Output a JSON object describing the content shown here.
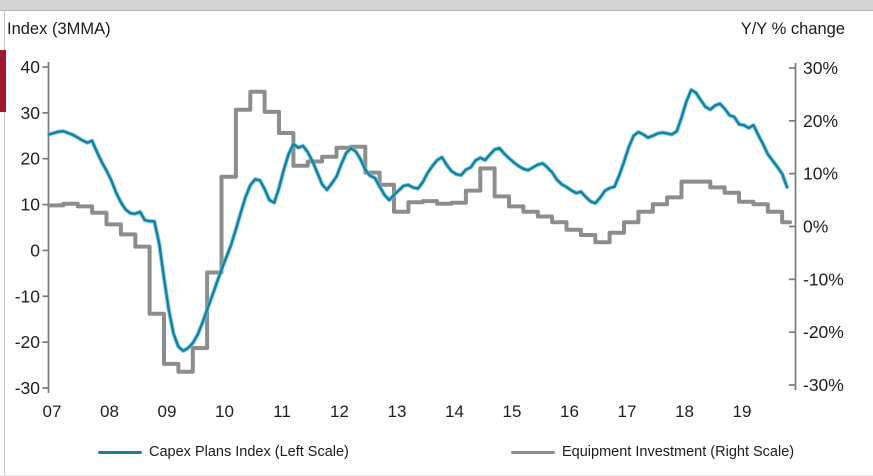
{
  "window": {
    "titlebar_color": "#d5d5d5",
    "accent_bar_color": "#A01A33"
  },
  "chart": {
    "left_axis_title": "Index (3MMA)",
    "right_axis_title": "Y/Y % change",
    "left_ticks": [
      "40",
      "30",
      "20",
      "10",
      "0",
      "-10",
      "-20",
      "-30"
    ],
    "right_ticks": [
      "30%",
      "20%",
      "10%",
      "0%",
      "-10%",
      "-20%",
      "-30%"
    ],
    "x_ticks": [
      "07",
      "08",
      "09",
      "10",
      "11",
      "12",
      "13",
      "14",
      "15",
      "16",
      "17",
      "18",
      "19"
    ],
    "legend": {
      "capex_label": "Capex Plans Index (Left Scale)",
      "equip_label": "Equipment Investment (Right Scale)"
    },
    "colors": {
      "capex_line": "#1b7e9e",
      "capex_glow": "#5ec6e0",
      "equip_line": "#8d8d8d",
      "axis": "#7a7a7a",
      "tick_text": "#1f1f1f"
    }
  },
  "chart_data": {
    "type": "line",
    "title": "",
    "left_axis_label": "Index (3MMA)",
    "right_axis_label": "Y/Y % change",
    "x_range": [
      "2007-01",
      "2019-11"
    ],
    "left_ylim": [
      -30,
      40
    ],
    "right_ylim": [
      -30,
      30
    ],
    "grid": false,
    "legend_position": "bottom",
    "series": [
      {
        "name": "Capex Plans Index (Left Scale)",
        "axis": "left",
        "frequency": "monthly",
        "start": "2007-01",
        "style": "line",
        "values": [
          25.3,
          25.6,
          25.9,
          26.0,
          25.6,
          25.2,
          24.6,
          24.0,
          23.5,
          23.9,
          21.5,
          19.3,
          17.4,
          15.3,
          12.6,
          10.5,
          8.9,
          8.1,
          8.0,
          8.4,
          6.6,
          6.4,
          6.3,
          1.5,
          -6.0,
          -13.0,
          -18.2,
          -21.0,
          -21.9,
          -21.3,
          -20.2,
          -18.4,
          -15.8,
          -12.9,
          -10.1,
          -7.1,
          -4.2,
          -1.5,
          1.2,
          4.6,
          8.2,
          11.6,
          14.2,
          15.5,
          15.3,
          13.4,
          11.0,
          10.4,
          13.6,
          17.6,
          21.0,
          23.2,
          22.4,
          22.8,
          21.4,
          19.4,
          16.9,
          14.4,
          13.2,
          14.6,
          16.1,
          18.8,
          21.2,
          22.3,
          21.6,
          19.9,
          17.6,
          16.3,
          15.8,
          13.9,
          12.1,
          11.0,
          12.1,
          13.1,
          14.1,
          14.3,
          13.7,
          13.5,
          14.9,
          16.9,
          18.4,
          19.7,
          20.3,
          18.6,
          17.3,
          16.6,
          16.4,
          17.6,
          18.1,
          19.6,
          20.2,
          19.7,
          20.9,
          22.0,
          22.3,
          21.1,
          20.1,
          19.2,
          18.4,
          17.8,
          17.5,
          18.1,
          18.7,
          19.0,
          18.1,
          17.0,
          15.4,
          14.4,
          13.8,
          13.1,
          12.5,
          12.8,
          11.7,
          10.7,
          10.3,
          11.5,
          13.0,
          13.6,
          13.9,
          16.4,
          19.4,
          22.6,
          25.0,
          25.8,
          25.3,
          24.6,
          25.0,
          25.5,
          25.7,
          25.5,
          25.3,
          26.0,
          29.0,
          32.5,
          35.0,
          34.4,
          32.8,
          31.3,
          30.7,
          31.6,
          32.0,
          30.9,
          29.5,
          29.1,
          27.5,
          27.3,
          26.7,
          27.3,
          25.2,
          23.2,
          21.0,
          19.6,
          18.2,
          16.7,
          13.8
        ]
      },
      {
        "name": "Equipment Investment (Right Scale)",
        "axis": "right",
        "frequency": "quarterly",
        "start": "2007-Q1",
        "style": "step",
        "values": [
          4.0,
          4.3,
          3.8,
          2.6,
          0.4,
          -1.5,
          -3.8,
          -16.5,
          -26.0,
          -27.5,
          -23.0,
          -8.7,
          9.4,
          22.1,
          25.5,
          21.7,
          17.7,
          11.5,
          12.3,
          13.2,
          14.9,
          15.1,
          10.2,
          7.9,
          2.8,
          4.6,
          4.8,
          4.3,
          4.5,
          6.8,
          11.0,
          5.7,
          3.8,
          2.8,
          1.9,
          0.8,
          -0.6,
          -1.6,
          -3.0,
          -1.2,
          0.8,
          2.8,
          4.2,
          5.5,
          8.5,
          8.5,
          7.4,
          6.4,
          4.7,
          4.2,
          2.8,
          0.8
        ]
      }
    ]
  }
}
